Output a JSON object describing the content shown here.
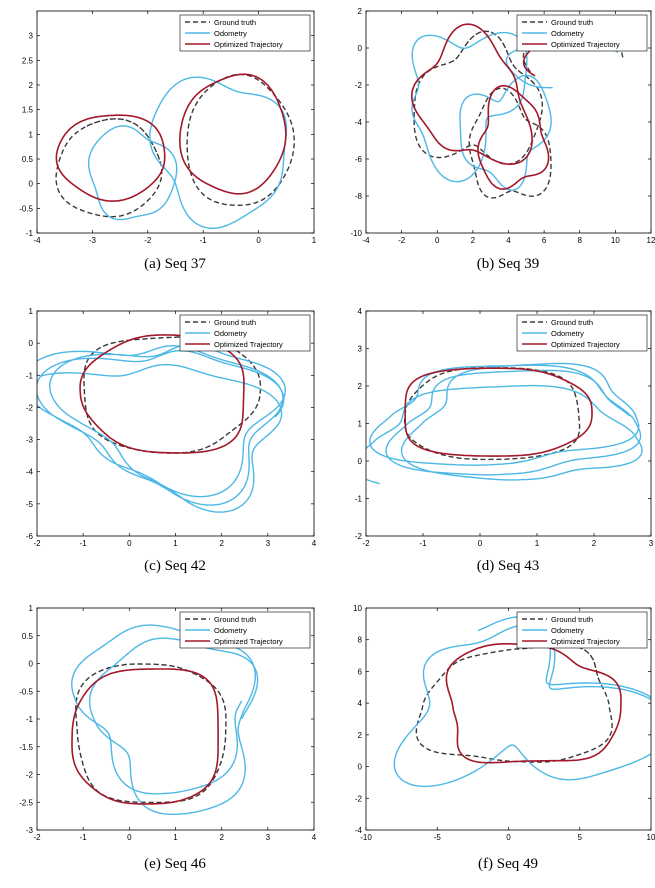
{
  "colors": {
    "ground_truth": "#3a3a3a",
    "odometry": "#4db8e6",
    "optimized": "#a3182a",
    "axes": "#000000"
  },
  "legend_labels": [
    "Ground truth",
    "Odometry",
    "Optimized Trajectory"
  ],
  "captions": [
    "(a) Seq 37",
    "(b) Seq 39",
    "(c) Seq 42",
    "(d) Seq 43",
    "(e) Seq 46",
    "(f) Seq 49"
  ],
  "chart_data": [
    {
      "type": "line",
      "title": "",
      "caption": "(a) Seq 37",
      "xlim": [
        -4,
        1
      ],
      "ylim": [
        -1,
        3.5
      ],
      "xticks": [
        -4,
        -3,
        -2,
        -1,
        0,
        1
      ],
      "xtick_labels": [
        "-4",
        "-3",
        "-2",
        "-1",
        "0",
        "1"
      ],
      "yticks": [
        -1,
        -0.5,
        0,
        0.5,
        1,
        1.5,
        2,
        2.5,
        3
      ],
      "ytick_labels": [
        "-1",
        "-0.5",
        "0",
        "0.5",
        "1",
        "1.5",
        "2",
        "2.5",
        "3"
      ],
      "grid": false,
      "legend_position": "top-right",
      "series": [
        {
          "name": "Ground truth",
          "style": "dashed",
          "loops": [
            {
              "cx": -2.7,
              "cy": 0.3,
              "rx": 0.95,
              "ry": 0.98,
              "a0": 0.2,
              "n": 1.3,
              "wob": 0.06,
              "seed": 1
            },
            {
              "cx": -0.35,
              "cy": 0.85,
              "rx": 0.95,
              "ry": 1.35,
              "a0": 0.5,
              "n": 1.2,
              "wob": 0.05,
              "seed": 2
            }
          ]
        },
        {
          "name": "Odometry",
          "style": "solid",
          "loops": [
            {
              "cx": -2.3,
              "cy": 0.2,
              "rx": 0.75,
              "ry": 0.95,
              "a0": 0.0,
              "n": 1.15,
              "wob": 0.14,
              "seed": 3
            },
            {
              "cx": -0.7,
              "cy": 0.7,
              "rx": 1.25,
              "ry": 1.4,
              "a0": 0.8,
              "n": 1.15,
              "wob": 0.18,
              "seed": 4
            }
          ]
        },
        {
          "name": "Optimized Trajectory",
          "style": "solid",
          "loops": [
            {
              "cx": -2.65,
              "cy": 0.55,
              "rx": 1.0,
              "ry": 0.85,
              "a0": 0.4,
              "n": 1.3,
              "wob": 0.06,
              "seed": 5
            },
            {
              "cx": -0.45,
              "cy": 1.0,
              "rx": 0.95,
              "ry": 1.2,
              "a0": 1.1,
              "n": 1.2,
              "wob": 0.06,
              "seed": 6
            }
          ]
        }
      ]
    },
    {
      "type": "line",
      "title": "",
      "caption": "(b) Seq 39",
      "xlim": [
        -4,
        12
      ],
      "ylim": [
        -10,
        2
      ],
      "xticks": [
        -4,
        -2,
        0,
        2,
        4,
        6,
        8,
        10,
        12
      ],
      "xtick_labels": [
        "-4",
        "-2",
        "0",
        "2",
        "4",
        "6",
        "8",
        "10",
        "12"
      ],
      "yticks": [
        -10,
        -8,
        -6,
        -4,
        -2,
        0,
        2
      ],
      "ytick_labels": [
        "-10",
        "-8",
        "-6",
        "-4",
        "-2",
        "0",
        "2"
      ],
      "grid": false,
      "legend_position": "top-right",
      "series": [
        {
          "name": "Ground truth",
          "style": "dashed",
          "loops": [
            {
              "cx": 2.3,
              "cy": -3.0,
              "rx": 3.2,
              "ry": 3.5,
              "a0": 0.3,
              "n": 1.3,
              "wob": 0.3,
              "seed": 7
            },
            {
              "cx": 4.0,
              "cy": -5.5,
              "rx": 2.2,
              "ry": 2.8,
              "a0": 1.0,
              "n": 1.0,
              "wob": 0.25,
              "seed": 8
            },
            {
              "cx": 7.5,
              "cy": -0.5,
              "rx": 3.0,
              "ry": 1.8,
              "a0": 0.0,
              "n": 0.6,
              "wob": 0.2,
              "seed": 9
            }
          ]
        },
        {
          "name": "Odometry",
          "style": "solid",
          "loops": [
            {
              "cx": 1.5,
              "cy": -2.5,
              "rx": 3.4,
              "ry": 3.2,
              "a0": 0.0,
              "n": 1.3,
              "wob": 0.45,
              "seed": 10
            },
            {
              "cx": 3.8,
              "cy": -4.5,
              "rx": 2.3,
              "ry": 2.8,
              "a0": 2.0,
              "n": 1.0,
              "wob": 0.35,
              "seed": 11
            },
            {
              "cx": 7.5,
              "cy": -1.0,
              "rx": 3.0,
              "ry": 1.6,
              "a0": 0.5,
              "n": 0.6,
              "wob": 0.25,
              "seed": 12
            }
          ]
        },
        {
          "name": "Optimized Trajectory",
          "style": "solid",
          "loops": [
            {
              "cx": 2.0,
              "cy": -2.8,
              "rx": 3.1,
              "ry": 3.3,
              "a0": 0.6,
              "n": 1.3,
              "wob": 0.3,
              "seed": 13
            },
            {
              "cx": 4.2,
              "cy": -5.0,
              "rx": 2.0,
              "ry": 2.4,
              "a0": 1.5,
              "n": 1.1,
              "wob": 0.25,
              "seed": 14
            },
            {
              "cx": 7.6,
              "cy": -0.2,
              "rx": 2.8,
              "ry": 1.6,
              "a0": 0.2,
              "n": 0.6,
              "wob": 0.2,
              "seed": 15
            }
          ]
        }
      ]
    },
    {
      "type": "line",
      "title": "",
      "caption": "(c) Seq 42",
      "xlim": [
        -2,
        4
      ],
      "ylim": [
        -6,
        1
      ],
      "xticks": [
        -2,
        -1,
        0,
        1,
        2,
        3,
        4
      ],
      "xtick_labels": [
        "-2",
        "-1",
        "0",
        "1",
        "2",
        "3",
        "4"
      ],
      "yticks": [
        -6,
        -5,
        -4,
        -3,
        -2,
        -1,
        0,
        1
      ],
      "ytick_labels": [
        "-6",
        "-5",
        "-4",
        "-3",
        "-2",
        "-1",
        "0",
        "1"
      ],
      "grid": false,
      "legend_position": "top-right",
      "series": [
        {
          "name": "Ground truth",
          "style": "dashed",
          "loops": [
            {
              "cx": 0.85,
              "cy": -1.55,
              "rx": 1.85,
              "ry": 1.85,
              "a0": 0.3,
              "n": 3.2,
              "wob": 0.08,
              "seed": 16,
              "square": 0.45
            }
          ]
        },
        {
          "name": "Odometry",
          "style": "solid",
          "loops": [
            {
              "cx": 0.85,
              "cy": -2.3,
              "rx": 2.2,
              "ry": 2.4,
              "a0": 0.0,
              "n": 3.4,
              "wob": 0.35,
              "seed": 17,
              "drift": 0.5,
              "square": 0.3
            }
          ]
        },
        {
          "name": "Optimized Trajectory",
          "style": "solid",
          "loops": [
            {
              "cx": 0.8,
              "cy": -1.6,
              "rx": 1.8,
              "ry": 1.8,
              "a0": 0.6,
              "n": 3.5,
              "wob": 0.07,
              "seed": 18,
              "square": 0.45
            }
          ]
        }
      ]
    },
    {
      "type": "line",
      "title": "",
      "caption": "(d) Seq 43",
      "xlim": [
        -2,
        3
      ],
      "ylim": [
        -2,
        4
      ],
      "xticks": [
        -2,
        -1,
        0,
        1,
        2,
        3
      ],
      "xtick_labels": [
        "-2",
        "-1",
        "0",
        "1",
        "2",
        "3"
      ],
      "yticks": [
        -2,
        -1,
        0,
        1,
        2,
        3,
        4
      ],
      "ytick_labels": [
        "-2",
        "-1",
        "0",
        "1",
        "2",
        "3",
        "4"
      ],
      "grid": false,
      "legend_position": "top-right",
      "series": [
        {
          "name": "Ground truth",
          "style": "dashed",
          "loops": [
            {
              "cx": 0.25,
              "cy": 1.25,
              "rx": 1.55,
              "ry": 1.2,
              "a0": 0.3,
              "n": 3.2,
              "wob": 0.05,
              "seed": 19,
              "square": 0.55
            }
          ]
        },
        {
          "name": "Odometry",
          "style": "solid",
          "loops": [
            {
              "cx": 0.55,
              "cy": 1.0,
              "rx": 2.0,
              "ry": 1.4,
              "a0": 0.1,
              "n": 3.6,
              "wob": 0.22,
              "seed": 20,
              "drift": 0.5,
              "square": 0.45
            }
          ]
        },
        {
          "name": "Optimized Trajectory",
          "style": "solid",
          "loops": [
            {
              "cx": 0.25,
              "cy": 1.3,
              "rx": 1.6,
              "ry": 1.2,
              "a0": 0.8,
              "n": 3.8,
              "wob": 0.06,
              "seed": 21,
              "square": 0.55
            }
          ]
        }
      ]
    },
    {
      "type": "line",
      "title": "",
      "caption": "(e) Seq 46",
      "xlim": [
        -2,
        4
      ],
      "ylim": [
        -3,
        1
      ],
      "xticks": [
        -2,
        -1,
        0,
        1,
        2,
        3,
        4
      ],
      "xtick_labels": [
        "-2",
        "-1",
        "0",
        "1",
        "2",
        "3",
        "4"
      ],
      "yticks": [
        -3,
        -2.5,
        -2,
        -1.5,
        -1,
        -0.5,
        0,
        0.5,
        1
      ],
      "ytick_labels": [
        "-3",
        "-2.5",
        "-2",
        "-1.5",
        "-1",
        "-0.5",
        "0",
        "0.5",
        "1"
      ],
      "grid": false,
      "legend_position": "top-right",
      "series": [
        {
          "name": "Ground truth",
          "style": "dashed",
          "loops": [
            {
              "cx": 0.45,
              "cy": -1.25,
              "rx": 1.6,
              "ry": 1.25,
              "a0": 0.3,
              "n": 2.2,
              "wob": 0.05,
              "seed": 22,
              "square": 0.6
            }
          ]
        },
        {
          "name": "Odometry",
          "style": "solid",
          "loops": [
            {
              "cx": 1.0,
              "cy": -1.0,
              "rx": 1.8,
              "ry": 1.45,
              "a0": 0.0,
              "n": 2.0,
              "wob": 0.25,
              "seed": 23,
              "drift": 0.4,
              "square": 0.4
            }
          ]
        },
        {
          "name": "Optimized Trajectory",
          "style": "solid",
          "loops": [
            {
              "cx": 0.4,
              "cy": -1.3,
              "rx": 1.6,
              "ry": 1.2,
              "a0": 0.9,
              "n": 2.3,
              "wob": 0.05,
              "seed": 24,
              "square": 0.6
            }
          ]
        }
      ]
    },
    {
      "type": "line",
      "title": "",
      "caption": "(f) Seq 49",
      "xlim": [
        -10,
        10
      ],
      "ylim": [
        -4,
        10
      ],
      "xticks": [
        -10,
        -5,
        0,
        5,
        10
      ],
      "xtick_labels": [
        "-10",
        "-5",
        "0",
        "5",
        "10"
      ],
      "yticks": [
        -4,
        -2,
        0,
        2,
        4,
        6,
        8,
        10
      ],
      "ytick_labels": [
        "-4",
        "-2",
        "0",
        "2",
        "4",
        "6",
        "8",
        "10"
      ],
      "grid": false,
      "legend_position": "top-right",
      "series": [
        {
          "name": "Ground truth",
          "style": "dashed",
          "loops": [
            {
              "cx": 0.7,
              "cy": 3.8,
              "rx": 6.3,
              "ry": 3.7,
              "a0": 0.3,
              "n": 1.2,
              "wob": 0.15,
              "seed": 25,
              "square": 0.6
            }
          ]
        },
        {
          "name": "Odometry",
          "style": "solid",
          "loops": [
            {
              "cx": 0.5,
              "cy": 3.5,
              "rx": 7.0,
              "ry": 5.0,
              "a0": 0.0,
              "n": 1.3,
              "wob": 0.6,
              "seed": 26,
              "drift": 0.6,
              "square": 0.35
            }
          ]
        },
        {
          "name": "Optimized Trajectory",
          "style": "solid",
          "loops": [
            {
              "cx": 1.5,
              "cy": 3.8,
              "rx": 6.0,
              "ry": 3.6,
              "a0": 0.7,
              "n": 1.2,
              "wob": 0.15,
              "seed": 27,
              "square": 0.6
            }
          ]
        }
      ]
    }
  ]
}
